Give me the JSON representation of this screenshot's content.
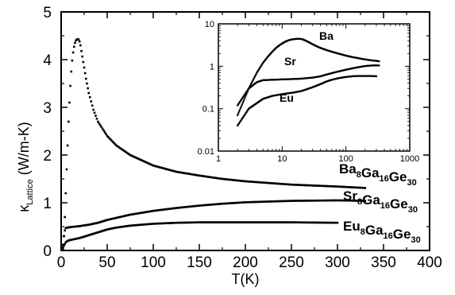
{
  "chart_data": {
    "type": "scatter",
    "xlabel": "T(K)",
    "ylabel": {
      "symbol": "κ",
      "subscript": "Lattice",
      "unit": "(W/m-K)"
    },
    "xlim": [
      0,
      400
    ],
    "ylim": [
      0,
      5
    ],
    "x_ticks": [
      "0",
      "50",
      "100",
      "150",
      "200",
      "250",
      "300",
      "350",
      "400"
    ],
    "y_ticks": [
      "0",
      "1",
      "2",
      "3",
      "4",
      "5"
    ],
    "grid": false,
    "series": [
      {
        "name": "Ba8Ga16Ge30",
        "label_parts": [
          [
            "Ba",
            ""
          ],
          [
            "8",
            "sub"
          ],
          [
            "Ga",
            ""
          ],
          [
            "16",
            "sub"
          ],
          [
            "Ge",
            ""
          ],
          [
            "30",
            "sub"
          ]
        ],
        "points": [
          [
            2,
            0.07
          ],
          [
            3,
            0.3
          ],
          [
            4,
            0.7
          ],
          [
            5,
            1.2
          ],
          [
            6,
            1.7
          ],
          [
            7,
            2.2
          ],
          [
            8,
            2.7
          ],
          [
            9,
            3.1
          ],
          [
            10,
            3.45
          ],
          [
            11,
            3.75
          ],
          [
            12,
            3.98
          ],
          [
            13,
            4.15
          ],
          [
            14,
            4.27
          ],
          [
            15,
            4.35
          ],
          [
            16,
            4.4
          ],
          [
            17,
            4.42
          ],
          [
            18,
            4.43
          ],
          [
            19,
            4.42
          ],
          [
            20,
            4.38
          ],
          [
            21,
            4.3
          ],
          [
            22,
            4.18
          ],
          [
            24,
            3.95
          ],
          [
            27,
            3.6
          ],
          [
            30,
            3.3
          ],
          [
            35,
            2.95
          ],
          [
            40,
            2.7
          ],
          [
            50,
            2.4
          ],
          [
            60,
            2.2
          ],
          [
            75,
            2.0
          ],
          [
            100,
            1.78
          ],
          [
            125,
            1.65
          ],
          [
            150,
            1.57
          ],
          [
            175,
            1.5
          ],
          [
            200,
            1.45
          ],
          [
            250,
            1.38
          ],
          [
            300,
            1.34
          ],
          [
            330,
            1.31
          ]
        ]
      },
      {
        "name": "Sr8Ga16Ge30",
        "label_parts": [
          [
            "Sr",
            ""
          ],
          [
            "8",
            "sub"
          ],
          [
            "Ga",
            ""
          ],
          [
            "16",
            "sub"
          ],
          [
            "Ge",
            ""
          ],
          [
            "30",
            "sub"
          ]
        ],
        "points": [
          [
            2,
            0.12
          ],
          [
            3,
            0.3
          ],
          [
            4,
            0.42
          ],
          [
            5,
            0.47
          ],
          [
            7,
            0.48
          ],
          [
            10,
            0.49
          ],
          [
            15,
            0.5
          ],
          [
            20,
            0.51
          ],
          [
            30,
            0.54
          ],
          [
            40,
            0.58
          ],
          [
            50,
            0.64
          ],
          [
            75,
            0.75
          ],
          [
            100,
            0.83
          ],
          [
            125,
            0.89
          ],
          [
            150,
            0.94
          ],
          [
            175,
            0.98
          ],
          [
            200,
            1.01
          ],
          [
            250,
            1.04
          ],
          [
            300,
            1.05
          ],
          [
            330,
            1.04
          ]
        ]
      },
      {
        "name": "Eu8Ga16Ge30",
        "label_parts": [
          [
            "Eu",
            ""
          ],
          [
            "8",
            "sub"
          ],
          [
            "Ga",
            ""
          ],
          [
            "16",
            "sub"
          ],
          [
            "Ge",
            ""
          ],
          [
            "30",
            "sub"
          ]
        ],
        "points": [
          [
            2,
            0.04
          ],
          [
            3,
            0.1
          ],
          [
            5,
            0.17
          ],
          [
            7,
            0.2
          ],
          [
            10,
            0.22
          ],
          [
            15,
            0.24
          ],
          [
            20,
            0.26
          ],
          [
            30,
            0.32
          ],
          [
            40,
            0.38
          ],
          [
            50,
            0.44
          ],
          [
            60,
            0.48
          ],
          [
            75,
            0.52
          ],
          [
            100,
            0.56
          ],
          [
            125,
            0.58
          ],
          [
            150,
            0.59
          ],
          [
            200,
            0.59
          ],
          [
            250,
            0.59
          ],
          [
            300,
            0.58
          ]
        ]
      }
    ],
    "inset": {
      "type": "scatter",
      "xscale": "log",
      "yscale": "log",
      "xlim": [
        1,
        1000
      ],
      "ylim": [
        0.01,
        10
      ],
      "x_ticks": [
        "1",
        "10",
        "100",
        "1000"
      ],
      "y_ticks": [
        "0.01",
        "0.1",
        "1",
        "10"
      ],
      "series_labels": [
        "Ba",
        "Sr",
        "Eu"
      ]
    }
  }
}
